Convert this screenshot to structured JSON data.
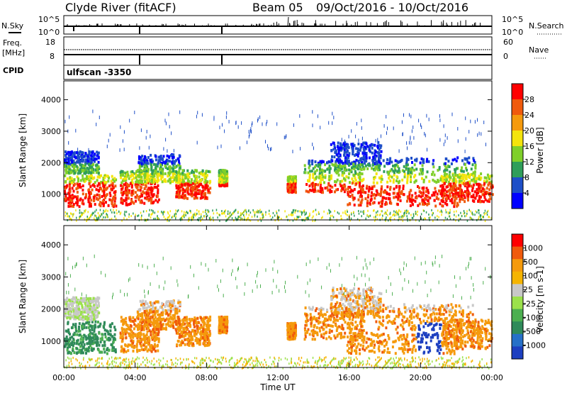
{
  "header": {
    "station": "Clyde River (fitACF)",
    "beam": "Beam 05",
    "date_range": "09/Oct/2016 - 10/Oct/2016"
  },
  "status_panels": {
    "nsky_label": "N.Sky",
    "nsky_ticks": [
      "10^5",
      "10^0"
    ],
    "nsearch_label": "N.Search",
    "freq_label_1": "Freq.",
    "freq_label_2": "[MHz]",
    "freq_ticks": [
      "18",
      "8"
    ],
    "nave_label": "Nave",
    "nave_ticks": [
      "60",
      "0"
    ],
    "cpid_label": "CPID",
    "cpid_value": "ulfscan -3350"
  },
  "chart_data": [
    {
      "type": "heatmap",
      "name": "power",
      "ylabel": "Slant Range [km]",
      "xlabel": "",
      "ylim": [
        180,
        4600
      ],
      "y_ticks": [
        "1000",
        "2000",
        "3000",
        "4000"
      ],
      "x_ticks": [
        "00:00",
        "04:00",
        "08:00",
        "12:00",
        "16:00",
        "20:00",
        "00:00"
      ],
      "colorbar_label": "Power [dB]",
      "colorbar_ticks": [
        "28",
        "24",
        "20",
        "16",
        "12",
        "8",
        "4"
      ],
      "colors": [
        "#0000ff",
        "#1e4fc8",
        "#2f9e5a",
        "#7fcf2a",
        "#f4e40c",
        "#f59a0c",
        "#f05a0c",
        "#ff0000"
      ]
    },
    {
      "type": "heatmap",
      "name": "velocity",
      "ylabel": "Slant Range [km]",
      "xlabel": "Time UT",
      "ylim": [
        180,
        4600
      ],
      "y_ticks": [
        "1000",
        "2000",
        "3000",
        "4000"
      ],
      "x_ticks": [
        "00:00",
        "04:00",
        "08:00",
        "12:00",
        "16:00",
        "20:00",
        "00:00"
      ],
      "colorbar_label": "Velocity [m s-1]",
      "colorbar_ticks": [
        "1000",
        "500",
        "100",
        "25",
        "-25",
        "-100",
        "-500",
        "-1000"
      ],
      "colors": [
        "#1d3fc0",
        "#2670c8",
        "#2f8a5a",
        "#4caf50",
        "#9be14b",
        "#c8c8c8",
        "#f5b400",
        "#f59a0c",
        "#f05a0c",
        "#ff0000"
      ]
    }
  ]
}
